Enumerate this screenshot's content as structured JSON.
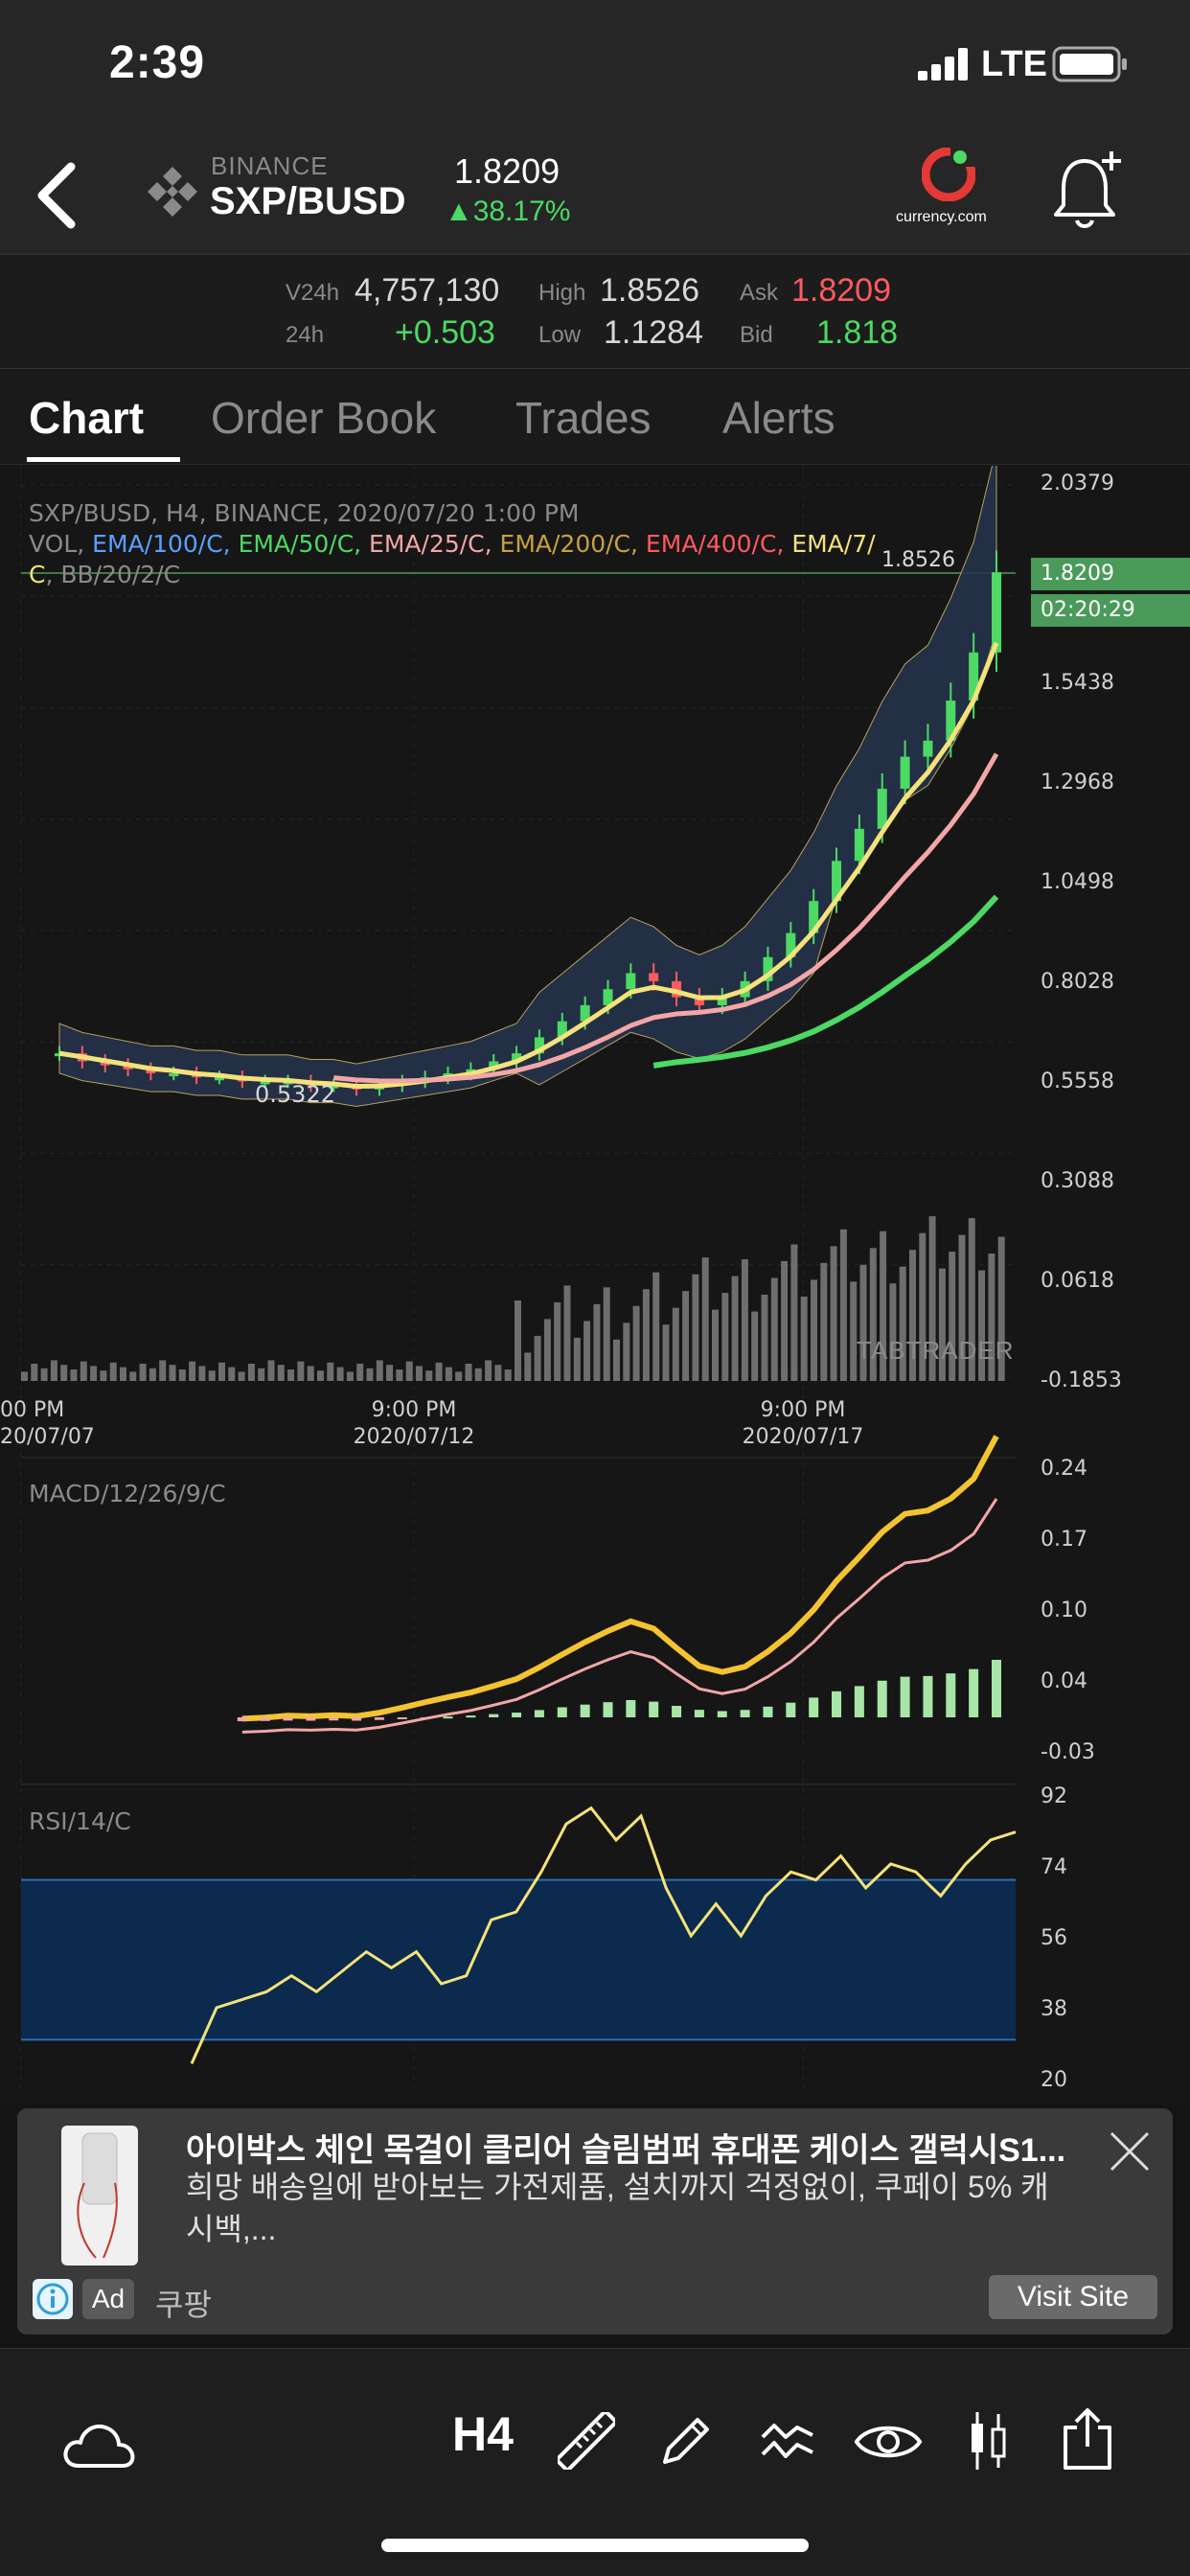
{
  "status_bar": {
    "time": "2:39",
    "network": "LTE"
  },
  "header": {
    "exchange": "BINANCE",
    "pair": "SXP/BUSD",
    "price": "1.8209",
    "change": "▲38.17%",
    "sponsor": "currency.com"
  },
  "stats": {
    "v24h_label": "V24h",
    "v24h": "4,757,130",
    "h24_label": "24h",
    "h24": "+0.503",
    "high_label": "High",
    "high": "1.8526",
    "low_label": "Low",
    "low": "1.1284",
    "ask_label": "Ask",
    "ask": "1.8209",
    "bid_label": "Bid",
    "bid": "1.818"
  },
  "tabs": [
    "Chart",
    "Order Book",
    "Trades",
    "Alerts"
  ],
  "chart": {
    "legend_title": "SXP/BUSD, H4, BINANCE, 2020/07/20 1:00 PM",
    "legend_vol": "VOL,",
    "legend_items": [
      {
        "text": "EMA/100/C,",
        "color": "#5aa0ff"
      },
      {
        "text": "EMA/50/C,",
        "color": "#4cd964"
      },
      {
        "text": "EMA/25/C,",
        "color": "#f4a6a6"
      },
      {
        "text": "EMA/200/C,",
        "color": "#c8a040"
      },
      {
        "text": "EMA/400/C,",
        "color": "#ff5a5f"
      },
      {
        "text": "EMA/7/",
        "color": "#f4e27a"
      },
      {
        "text": "C",
        "color": "#f4e27a"
      },
      {
        "text": ", BB/20/2/C",
        "color": "#8a8a8a"
      }
    ],
    "price_axis": [
      "2.0379",
      "1.5438",
      "1.2968",
      "1.0498",
      "0.8028",
      "0.5558",
      "0.3088",
      "0.0618",
      "-0.1853"
    ],
    "current_price_tag": "1.8209",
    "countdown_tag": "02:20:29",
    "high_marker": "1.8526",
    "low_marker": "0.5322",
    "date_labels": [
      {
        "time": "00 PM",
        "date": "20/07/07"
      },
      {
        "time": "9:00 PM",
        "date": "2020/07/12"
      },
      {
        "time": "9:00 PM",
        "date": "2020/07/17"
      }
    ],
    "watermark": "TABTRADER",
    "macd_label": "MACD/12/26/9/C",
    "macd_axis": [
      "0.24",
      "0.17",
      "0.10",
      "0.04",
      "-0.03"
    ],
    "rsi_label": "RSI/14/C",
    "rsi_axis": [
      "92",
      "74",
      "56",
      "38",
      "20"
    ]
  },
  "chart_data": {
    "type": "line",
    "title": "SXP/BUSD, H4, BINANCE, 2020/07/20 1:00 PM",
    "ylim": [
      -0.1853,
      2.0379
    ],
    "close_series": [
      0.62,
      0.6,
      0.59,
      0.58,
      0.57,
      0.57,
      0.56,
      0.56,
      0.55,
      0.55,
      0.55,
      0.54,
      0.54,
      0.53,
      0.54,
      0.55,
      0.56,
      0.57,
      0.58,
      0.6,
      0.62,
      0.66,
      0.7,
      0.74,
      0.78,
      0.82,
      0.8,
      0.76,
      0.74,
      0.76,
      0.8,
      0.86,
      0.92,
      1.0,
      1.1,
      1.18,
      1.28,
      1.36,
      1.4,
      1.5,
      1.62,
      1.82
    ],
    "rsi_series": [
      24,
      38,
      40,
      42,
      46,
      42,
      47,
      52,
      48,
      52,
      44,
      46,
      60,
      62,
      72,
      84,
      88,
      80,
      86,
      68,
      56,
      64,
      56,
      66,
      72,
      70,
      76,
      68,
      74,
      72,
      66,
      74,
      80,
      82
    ]
  },
  "ad": {
    "title": "아이박스 체인 목걸이 클리어 슬림범퍼 휴대폰 케이스 갤럭시S1...",
    "desc": "희망 배송일에 받아보는 가전제품, 설치까지 걱정없이, 쿠페이 5% 캐시백,...",
    "badge": "Ad",
    "brand": "쿠팡",
    "cta": "Visit Site"
  },
  "toolbar": {
    "timeframe": "H4"
  }
}
